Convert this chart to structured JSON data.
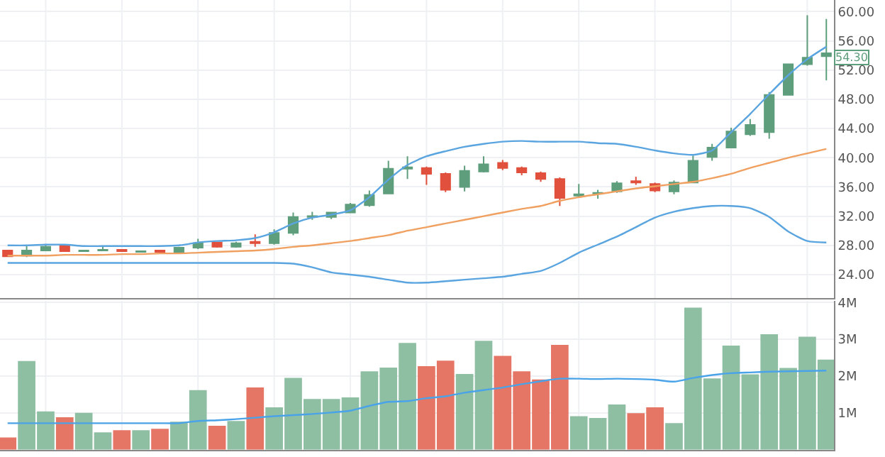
{
  "chart_data": [
    {
      "type": "candlestick",
      "categories": [
        null,
        null,
        null,
        null,
        null,
        null,
        null,
        null,
        null,
        null,
        null,
        null,
        null,
        null,
        null,
        null,
        null,
        null,
        null,
        null,
        null,
        null,
        null,
        null,
        null,
        null,
        null,
        null,
        null,
        null,
        null,
        null,
        null,
        null,
        null,
        null,
        null,
        null,
        null,
        null,
        null,
        null,
        null,
        null
      ],
      "ohlc": [
        [
          27.3,
          27.4,
          26.4,
          26.5
        ],
        [
          26.6,
          27.9,
          26.4,
          27.3
        ],
        [
          27.3,
          28.2,
          27.2,
          27.8
        ],
        [
          28.0,
          28.1,
          27.1,
          27.2
        ],
        [
          27.2,
          27.4,
          27.1,
          27.3
        ],
        [
          27.3,
          27.8,
          27.2,
          27.4
        ],
        [
          27.4,
          27.5,
          27.1,
          27.2
        ],
        [
          27.1,
          27.3,
          27.0,
          27.2
        ],
        [
          27.3,
          27.4,
          27.0,
          27.1
        ],
        [
          27.1,
          27.8,
          27.0,
          27.7
        ],
        [
          27.7,
          28.9,
          27.5,
          28.3
        ],
        [
          28.4,
          28.5,
          27.7,
          27.8
        ],
        [
          27.8,
          28.5,
          27.7,
          28.3
        ],
        [
          28.5,
          29.5,
          27.8,
          28.3
        ],
        [
          28.3,
          30.2,
          28.1,
          29.7
        ],
        [
          29.7,
          32.5,
          29.4,
          31.9
        ],
        [
          31.9,
          32.6,
          31.5,
          32.0
        ],
        [
          31.9,
          32.6,
          31.6,
          32.5
        ],
        [
          32.5,
          33.8,
          32.4,
          33.6
        ],
        [
          33.5,
          35.5,
          33.3,
          34.9
        ],
        [
          35.1,
          39.6,
          35.0,
          38.5
        ],
        [
          38.5,
          40.2,
          37.1,
          38.7
        ],
        [
          38.6,
          38.8,
          36.3,
          37.8
        ],
        [
          37.8,
          38.0,
          35.3,
          35.6
        ],
        [
          36.0,
          38.9,
          35.4,
          38.2
        ],
        [
          38.1,
          40.2,
          38.0,
          39.1
        ],
        [
          39.3,
          39.7,
          38.3,
          38.6
        ],
        [
          38.6,
          38.8,
          37.6,
          38.0
        ],
        [
          37.9,
          38.1,
          36.7,
          37.1
        ],
        [
          37.1,
          37.3,
          33.4,
          34.5
        ],
        [
          34.8,
          36.4,
          34.5,
          35.0
        ],
        [
          35.1,
          35.6,
          34.4,
          35.2
        ],
        [
          35.4,
          36.8,
          35.2,
          36.5
        ],
        [
          36.8,
          37.4,
          36.3,
          36.6
        ],
        [
          36.4,
          36.6,
          35.3,
          35.5
        ],
        [
          35.4,
          36.9,
          35.0,
          36.6
        ],
        [
          36.6,
          40.3,
          36.5,
          39.6
        ],
        [
          40.1,
          41.9,
          39.6,
          41.4
        ],
        [
          41.4,
          44.1,
          41.3,
          43.6
        ],
        [
          43.2,
          45.3,
          43.0,
          44.5
        ],
        [
          43.5,
          49.0,
          42.6,
          48.6
        ],
        [
          48.6,
          52.9,
          48.5,
          52.8
        ],
        [
          52.8,
          59.5,
          52.6,
          53.7
        ],
        [
          53.9,
          59.0,
          50.6,
          54.3
        ]
      ],
      "colors": [
        "#e0503c",
        "#5e9e7c",
        "#5e9e7c",
        "#e0503c",
        "#5e9e7c",
        "#5e9e7c",
        "#e0503c",
        "#5e9e7c",
        "#e0503c",
        "#5e9e7c",
        "#5e9e7c",
        "#e0503c",
        "#5e9e7c",
        "#e0503c",
        "#5e9e7c",
        "#5e9e7c",
        "#5e9e7c",
        "#5e9e7c",
        "#5e9e7c",
        "#5e9e7c",
        "#5e9e7c",
        "#5e9e7c",
        "#e0503c",
        "#e0503c",
        "#5e9e7c",
        "#5e9e7c",
        "#e0503c",
        "#e0503c",
        "#e0503c",
        "#e0503c",
        "#5e9e7c",
        "#5e9e7c",
        "#5e9e7c",
        "#e0503c",
        "#e0503c",
        "#5e9e7c",
        "#5e9e7c",
        "#5e9e7c",
        "#5e9e7c",
        "#5e9e7c",
        "#5e9e7c",
        "#5e9e7c",
        "#5e9e7c",
        "#5e9e7c"
      ],
      "series": [
        {
          "type": "line",
          "color": "#5aa5e0",
          "values": [
            28.0,
            28.0,
            28.1,
            28.1,
            27.9,
            27.9,
            27.9,
            27.9,
            27.9,
            28.0,
            28.4,
            28.6,
            28.7,
            29.0,
            29.8,
            31.0,
            31.8,
            32.2,
            32.8,
            34.6,
            37.0,
            39.0,
            40.2,
            40.9,
            41.5,
            41.9,
            42.2,
            42.3,
            42.2,
            42.2,
            42.2,
            42.0,
            41.9,
            41.5,
            41.0,
            40.6,
            40.4,
            41.0,
            43.5,
            46.0,
            48.7,
            51.3,
            53.5,
            55.2
          ]
        },
        {
          "type": "line",
          "color": "#5aa5e0",
          "values": [
            25.6,
            25.6,
            25.6,
            25.6,
            25.6,
            25.6,
            25.6,
            25.6,
            25.6,
            25.6,
            25.6,
            25.6,
            25.6,
            25.6,
            25.6,
            25.5,
            25.0,
            24.3,
            24.0,
            23.7,
            23.3,
            22.9,
            22.9,
            23.1,
            23.3,
            23.5,
            23.7,
            24.1,
            24.5,
            25.6,
            27.0,
            28.1,
            29.2,
            30.5,
            31.8,
            32.6,
            33.1,
            33.4,
            33.4,
            33.1,
            31.9,
            29.9,
            28.6,
            28.4
          ]
        },
        {
          "type": "line",
          "color": "#f0a060",
          "values": [
            26.6,
            26.6,
            26.6,
            26.7,
            26.7,
            26.7,
            26.8,
            26.8,
            26.9,
            26.9,
            27.0,
            27.1,
            27.2,
            27.3,
            27.5,
            27.8,
            28.0,
            28.3,
            28.6,
            29.0,
            29.4,
            30.0,
            30.5,
            31.0,
            31.5,
            32.0,
            32.5,
            33.0,
            33.4,
            34.1,
            34.6,
            35.0,
            35.4,
            35.8,
            36.1,
            36.4,
            36.7,
            37.2,
            37.8,
            38.6,
            39.3,
            40.0,
            40.6,
            41.2
          ]
        }
      ],
      "ylim": [
        20.8,
        61.6
      ],
      "yticks": [
        {
          "value": 24,
          "label": "24.00"
        },
        {
          "value": 28,
          "label": "28.00"
        },
        {
          "value": 32,
          "label": "32.00"
        },
        {
          "value": 36,
          "label": "36.00"
        },
        {
          "value": 40,
          "label": "40.00"
        },
        {
          "value": 44,
          "label": "44.00"
        },
        {
          "value": 48,
          "label": "48.00"
        },
        {
          "value": 52,
          "label": "52.00"
        },
        {
          "value": 56,
          "label": "56.00"
        },
        {
          "value": 60,
          "label": "60.00"
        }
      ],
      "grid": true,
      "tick_labels": "y",
      "annotations": [
        "54.30"
      ]
    },
    {
      "type": "bar",
      "categories": [
        null,
        null,
        null,
        null,
        null,
        null,
        null,
        null,
        null,
        null,
        null,
        null,
        null,
        null,
        null,
        null,
        null,
        null,
        null,
        null,
        null,
        null,
        null,
        null,
        null,
        null,
        null,
        null,
        null,
        null,
        null,
        null,
        null,
        null,
        null,
        null,
        null,
        null,
        null,
        null,
        null,
        null,
        null,
        null
      ],
      "series": [
        {
          "type": "bar",
          "colors": [
            "#e57565",
            "#8fbfa3",
            "#8fbfa3",
            "#e57565",
            "#8fbfa3",
            "#8fbfa3",
            "#e57565",
            "#8fbfa3",
            "#e57565",
            "#8fbfa3",
            "#8fbfa3",
            "#e57565",
            "#8fbfa3",
            "#e57565",
            "#8fbfa3",
            "#8fbfa3",
            "#8fbfa3",
            "#8fbfa3",
            "#8fbfa3",
            "#8fbfa3",
            "#8fbfa3",
            "#8fbfa3",
            "#e57565",
            "#e57565",
            "#8fbfa3",
            "#8fbfa3",
            "#e57565",
            "#e57565",
            "#e57565",
            "#e57565",
            "#8fbfa3",
            "#8fbfa3",
            "#8fbfa3",
            "#e57565",
            "#e57565",
            "#8fbfa3",
            "#8fbfa3",
            "#8fbfa3",
            "#8fbfa3",
            "#8fbfa3",
            "#8fbfa3",
            "#8fbfa3",
            "#8fbfa3",
            "#8fbfa3"
          ],
          "values": [
            0.33,
            2.41,
            1.04,
            0.88,
            1.0,
            0.47,
            0.53,
            0.53,
            0.57,
            0.76,
            1.62,
            0.65,
            0.78,
            1.69,
            1.15,
            1.95,
            1.38,
            1.38,
            1.42,
            2.13,
            2.23,
            2.9,
            2.27,
            2.42,
            2.06,
            2.96,
            2.55,
            2.13,
            1.91,
            2.85,
            0.91,
            0.86,
            1.23,
            0.99,
            1.15,
            0.72,
            3.86,
            1.94,
            2.83,
            2.05,
            3.14,
            2.22,
            3.07,
            2.45
          ]
        },
        {
          "type": "line",
          "color": "#4aa3e8",
          "values": [
            0.72,
            0.72,
            0.72,
            0.72,
            0.72,
            0.72,
            0.72,
            0.72,
            0.72,
            0.72,
            0.78,
            0.8,
            0.83,
            0.87,
            0.91,
            0.94,
            0.97,
            1.01,
            1.06,
            1.19,
            1.3,
            1.32,
            1.4,
            1.45,
            1.55,
            1.62,
            1.69,
            1.78,
            1.86,
            1.93,
            1.93,
            1.92,
            1.93,
            1.92,
            1.9,
            1.85,
            1.95,
            2.03,
            2.08,
            2.1,
            2.12,
            2.13,
            2.14,
            2.15
          ]
        }
      ],
      "ylim": [
        0,
        4.05
      ],
      "yticks": [
        {
          "value": 1,
          "label": "1M"
        },
        {
          "value": 2,
          "label": "2M"
        },
        {
          "value": 3,
          "label": "3M"
        },
        {
          "value": 4,
          "label": "4M"
        }
      ],
      "grid": true,
      "tick_labels": "y"
    }
  ]
}
